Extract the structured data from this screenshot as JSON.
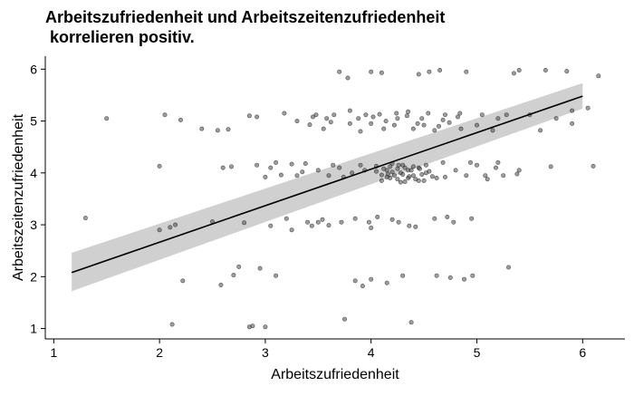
{
  "chart_data": {
    "type": "scatter",
    "title": "Arbeitszufriedenheit und Arbeitszeitenzufriedenheit\n korrelieren positiv.",
    "xlabel": "Arbeitszufriedenheit",
    "ylabel": "Arbeitszeitenzufriedenheit",
    "xlim": [
      0.92,
      6.4
    ],
    "ylim": [
      0.8,
      6.25
    ],
    "xticks": [
      1,
      2,
      3,
      4,
      5,
      6
    ],
    "yticks": [
      1,
      2,
      3,
      4,
      5,
      6
    ],
    "grid": false,
    "colors": {
      "point_fill": "#4d4d4d",
      "point_stroke": "#000000",
      "fit_line": "#000000",
      "ci_band": "#c8c8c8",
      "axis": "#000000"
    },
    "fit": {
      "x": [
        1.17,
        6.0
      ],
      "y": [
        2.08,
        5.48
      ],
      "ci_lower": [
        1.72,
        5.24
      ],
      "ci_upper": [
        2.46,
        5.73
      ]
    },
    "points": [
      {
        "x": 1.3,
        "y": 3.13
      },
      {
        "x": 1.5,
        "y": 5.05
      },
      {
        "x": 2.0,
        "y": 4.13
      },
      {
        "x": 2.05,
        "y": 5.12
      },
      {
        "x": 2.1,
        "y": 2.95
      },
      {
        "x": 2.12,
        "y": 1.08
      },
      {
        "x": 2.2,
        "y": 5.02
      },
      {
        "x": 2.22,
        "y": 1.92
      },
      {
        "x": 2.5,
        "y": 3.06
      },
      {
        "x": 2.55,
        "y": 4.82
      },
      {
        "x": 2.58,
        "y": 1.84
      },
      {
        "x": 2.6,
        "y": 4.1
      },
      {
        "x": 2.65,
        "y": 4.84
      },
      {
        "x": 2.7,
        "y": 2.03
      },
      {
        "x": 2.75,
        "y": 2.19
      },
      {
        "x": 2.8,
        "y": 3.04
      },
      {
        "x": 2.85,
        "y": 5.1
      },
      {
        "x": 2.85,
        "y": 1.03
      },
      {
        "x": 2.88,
        "y": 1.05
      },
      {
        "x": 2.92,
        "y": 4.15
      },
      {
        "x": 2.95,
        "y": 2.16
      },
      {
        "x": 3.0,
        "y": 1.03
      },
      {
        "x": 3.0,
        "y": 3.92
      },
      {
        "x": 3.05,
        "y": 4.1
      },
      {
        "x": 3.1,
        "y": 2.02
      },
      {
        "x": 3.1,
        "y": 4.2
      },
      {
        "x": 3.15,
        "y": 3.96
      },
      {
        "x": 3.2,
        "y": 3.12
      },
      {
        "x": 3.25,
        "y": 4.17
      },
      {
        "x": 3.3,
        "y": 3.95
      },
      {
        "x": 3.35,
        "y": 4.02
      },
      {
        "x": 3.38,
        "y": 4.18
      },
      {
        "x": 3.4,
        "y": 3.05
      },
      {
        "x": 3.42,
        "y": 4.93
      },
      {
        "x": 3.45,
        "y": 5.08
      },
      {
        "x": 3.48,
        "y": 5.12
      },
      {
        "x": 3.5,
        "y": 4.05
      },
      {
        "x": 3.5,
        "y": 3.05
      },
      {
        "x": 3.55,
        "y": 4.85
      },
      {
        "x": 3.58,
        "y": 5.05
      },
      {
        "x": 3.6,
        "y": 3.95
      },
      {
        "x": 3.6,
        "y": 2.99
      },
      {
        "x": 3.65,
        "y": 5.12
      },
      {
        "x": 3.7,
        "y": 5.95
      },
      {
        "x": 3.7,
        "y": 4.1
      },
      {
        "x": 3.72,
        "y": 3.05
      },
      {
        "x": 3.75,
        "y": 1.18
      },
      {
        "x": 3.78,
        "y": 5.83
      },
      {
        "x": 3.8,
        "y": 4.95
      },
      {
        "x": 3.8,
        "y": 5.2
      },
      {
        "x": 3.82,
        "y": 4.0
      },
      {
        "x": 3.85,
        "y": 3.12
      },
      {
        "x": 3.85,
        "y": 1.92
      },
      {
        "x": 3.88,
        "y": 5.05
      },
      {
        "x": 3.9,
        "y": 4.15
      },
      {
        "x": 3.9,
        "y": 4.8
      },
      {
        "x": 3.92,
        "y": 1.82
      },
      {
        "x": 3.95,
        "y": 5.12
      },
      {
        "x": 3.98,
        "y": 3.05
      },
      {
        "x": 4.0,
        "y": 5.95
      },
      {
        "x": 4.0,
        "y": 4.95
      },
      {
        "x": 4.0,
        "y": 2.94
      },
      {
        "x": 4.0,
        "y": 1.95
      },
      {
        "x": 4.02,
        "y": 5.08
      },
      {
        "x": 4.05,
        "y": 4.13
      },
      {
        "x": 4.08,
        "y": 5.13
      },
      {
        "x": 4.1,
        "y": 3.96
      },
      {
        "x": 4.1,
        "y": 5.93
      },
      {
        "x": 4.12,
        "y": 4.85
      },
      {
        "x": 4.15,
        "y": 4.05
      },
      {
        "x": 4.15,
        "y": 1.88
      },
      {
        "x": 4.18,
        "y": 3.9
      },
      {
        "x": 4.2,
        "y": 4.18
      },
      {
        "x": 4.2,
        "y": 3.1
      },
      {
        "x": 4.22,
        "y": 4.92
      },
      {
        "x": 4.25,
        "y": 3.88
      },
      {
        "x": 4.25,
        "y": 5.05
      },
      {
        "x": 4.28,
        "y": 4.0
      },
      {
        "x": 4.3,
        "y": 4.15
      },
      {
        "x": 4.3,
        "y": 2.02
      },
      {
        "x": 4.32,
        "y": 3.83
      },
      {
        "x": 4.35,
        "y": 5.18
      },
      {
        "x": 4.35,
        "y": 4.05
      },
      {
        "x": 4.38,
        "y": 1.12
      },
      {
        "x": 4.4,
        "y": 3.95
      },
      {
        "x": 4.4,
        "y": 4.85
      },
      {
        "x": 4.42,
        "y": 2.96
      },
      {
        "x": 4.45,
        "y": 5.9
      },
      {
        "x": 4.45,
        "y": 4.1
      },
      {
        "x": 4.48,
        "y": 5.05
      },
      {
        "x": 4.5,
        "y": 3.85
      },
      {
        "x": 4.5,
        "y": 4.92
      },
      {
        "x": 4.52,
        "y": 4.15
      },
      {
        "x": 4.55,
        "y": 5.95
      },
      {
        "x": 4.58,
        "y": 3.93
      },
      {
        "x": 4.6,
        "y": 3.12
      },
      {
        "x": 4.6,
        "y": 4.82
      },
      {
        "x": 4.62,
        "y": 2.02
      },
      {
        "x": 4.65,
        "y": 5.98
      },
      {
        "x": 4.68,
        "y": 4.2
      },
      {
        "x": 4.7,
        "y": 3.92
      },
      {
        "x": 4.7,
        "y": 5.12
      },
      {
        "x": 4.72,
        "y": 3.15
      },
      {
        "x": 4.75,
        "y": 1.98
      },
      {
        "x": 4.8,
        "y": 4.05
      },
      {
        "x": 4.82,
        "y": 5.08
      },
      {
        "x": 4.85,
        "y": 4.85
      },
      {
        "x": 4.9,
        "y": 3.95
      },
      {
        "x": 4.9,
        "y": 5.95
      },
      {
        "x": 4.95,
        "y": 3.12
      },
      {
        "x": 5.0,
        "y": 4.15
      },
      {
        "x": 5.0,
        "y": 4.92
      },
      {
        "x": 5.05,
        "y": 5.12
      },
      {
        "x": 5.1,
        "y": 3.88
      },
      {
        "x": 5.15,
        "y": 4.82
      },
      {
        "x": 5.2,
        "y": 4.2
      },
      {
        "x": 5.2,
        "y": 5.05
      },
      {
        "x": 5.25,
        "y": 3.95
      },
      {
        "x": 5.3,
        "y": 2.18
      },
      {
        "x": 5.35,
        "y": 5.92
      },
      {
        "x": 5.4,
        "y": 5.98
      },
      {
        "x": 5.4,
        "y": 4.05
      },
      {
        "x": 5.5,
        "y": 5.12
      },
      {
        "x": 5.6,
        "y": 4.82
      },
      {
        "x": 5.65,
        "y": 5.98
      },
      {
        "x": 5.7,
        "y": 4.12
      },
      {
        "x": 5.85,
        "y": 5.96
      },
      {
        "x": 5.9,
        "y": 4.95
      },
      {
        "x": 5.9,
        "y": 5.2
      },
      {
        "x": 6.05,
        "y": 5.25
      },
      {
        "x": 6.1,
        "y": 4.13
      },
      {
        "x": 6.15,
        "y": 5.87
      },
      {
        "x": 5.75,
        "y": 5.05
      },
      {
        "x": 3.3,
        "y": 5.0
      },
      {
        "x": 3.62,
        "y": 4.98
      },
      {
        "x": 4.68,
        "y": 5.02
      },
      {
        "x": 4.1,
        "y": 3.85
      },
      {
        "x": 4.15,
        "y": 3.92
      },
      {
        "x": 4.2,
        "y": 4.02
      },
      {
        "x": 4.25,
        "y": 4.08
      },
      {
        "x": 4.3,
        "y": 3.97
      },
      {
        "x": 4.35,
        "y": 3.9
      },
      {
        "x": 4.4,
        "y": 4.12
      },
      {
        "x": 4.45,
        "y": 3.85
      },
      {
        "x": 4.05,
        "y": 4.03
      },
      {
        "x": 4.18,
        "y": 4.12
      },
      {
        "x": 4.28,
        "y": 3.82
      },
      {
        "x": 4.38,
        "y": 4.05
      },
      {
        "x": 4.48,
        "y": 3.97
      },
      {
        "x": 4.55,
        "y": 4.03
      },
      {
        "x": 4.12,
        "y": 4.08
      },
      {
        "x": 4.22,
        "y": 3.95
      },
      {
        "x": 4.32,
        "y": 4.1
      },
      {
        "x": 4.42,
        "y": 3.88
      },
      {
        "x": 4.52,
        "y": 4.0
      },
      {
        "x": 4.62,
        "y": 3.9
      },
      {
        "x": 4.16,
        "y": 3.98
      },
      {
        "x": 4.26,
        "y": 4.15
      },
      {
        "x": 4.36,
        "y": 3.93
      },
      {
        "x": 4.46,
        "y": 4.08
      },
      {
        "x": 4.34,
        "y": 5.1
      },
      {
        "x": 4.44,
        "y": 4.95
      },
      {
        "x": 4.54,
        "y": 5.15
      },
      {
        "x": 4.14,
        "y": 5.0
      },
      {
        "x": 4.24,
        "y": 5.15
      },
      {
        "x": 4.64,
        "y": 4.9
      },
      {
        "x": 4.74,
        "y": 4.97
      },
      {
        "x": 4.84,
        "y": 5.15
      },
      {
        "x": 3.64,
        "y": 4.15
      },
      {
        "x": 3.74,
        "y": 3.92
      },
      {
        "x": 3.94,
        "y": 4.05
      },
      {
        "x": 4.06,
        "y": 3.15
      },
      {
        "x": 4.26,
        "y": 3.05
      },
      {
        "x": 4.36,
        "y": 2.98
      },
      {
        "x": 3.44,
        "y": 2.98
      },
      {
        "x": 3.54,
        "y": 3.1
      },
      {
        "x": 5.08,
        "y": 3.95
      },
      {
        "x": 5.18,
        "y": 4.1
      },
      {
        "x": 5.28,
        "y": 5.12
      },
      {
        "x": 5.38,
        "y": 3.98
      },
      {
        "x": 4.94,
        "y": 4.2
      },
      {
        "x": 4.78,
        "y": 3.05
      },
      {
        "x": 4.88,
        "y": 1.95
      },
      {
        "x": 4.96,
        "y": 2.02
      },
      {
        "x": 3.05,
        "y": 2.98
      },
      {
        "x": 2.68,
        "y": 4.12
      },
      {
        "x": 2.92,
        "y": 5.08
      },
      {
        "x": 3.25,
        "y": 2.9
      },
      {
        "x": 3.18,
        "y": 5.15
      },
      {
        "x": 2.4,
        "y": 4.85
      },
      {
        "x": 2.0,
        "y": 2.9
      },
      {
        "x": 2.15,
        "y": 3.0
      }
    ]
  }
}
